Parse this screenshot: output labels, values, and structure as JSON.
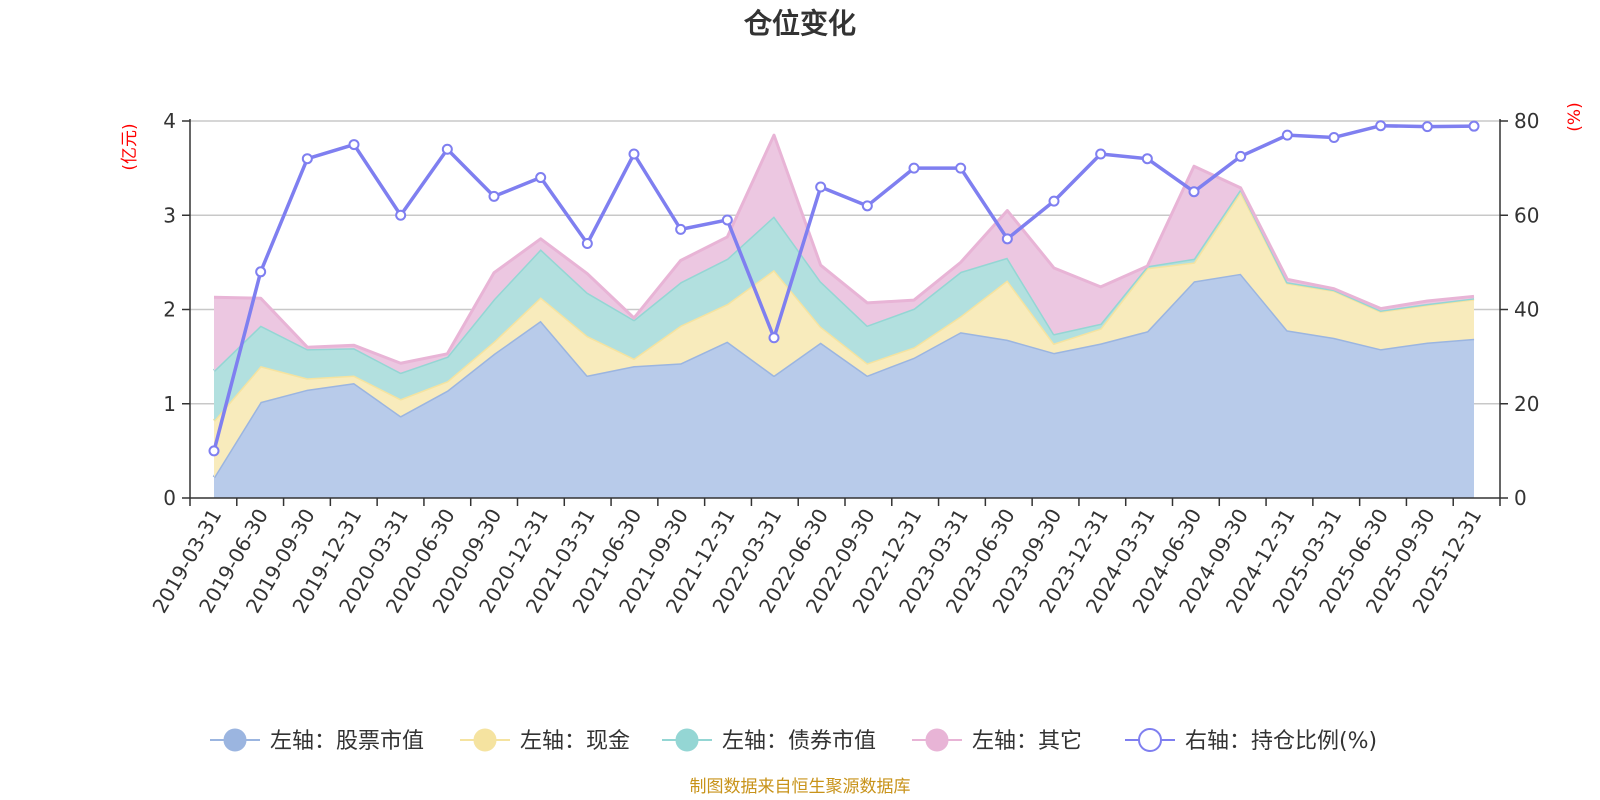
{
  "chart_data": {
    "type": "area",
    "title": "仓位变化",
    "source": "制图数据来自恒生聚源数据库",
    "y_left": {
      "label": "(亿元)",
      "min": 0,
      "max": 4,
      "ticks": [
        0,
        1,
        2,
        3,
        4
      ]
    },
    "y_right": {
      "label": "(%)",
      "min": 0,
      "max": 80,
      "ticks": [
        0,
        20,
        40,
        60,
        80
      ]
    },
    "categories": [
      "2019-03-31",
      "2019-06-30",
      "2019-09-30",
      "2019-12-31",
      "2020-03-31",
      "2020-06-30",
      "2020-09-30",
      "2020-12-31",
      "2021-03-31",
      "2021-06-30",
      "2021-09-30",
      "2021-12-31",
      "2022-03-31",
      "2022-06-30",
      "2022-09-30",
      "2022-12-31",
      "2023-03-31",
      "2023-06-30",
      "2023-09-30",
      "2023-12-31",
      "2024-03-31",
      "2024-06-30",
      "2024-09-30",
      "2024-12-31",
      "2025-03-31",
      "2025-06-30",
      "2025-09-30",
      "2025-12-31"
    ],
    "stacked_series": [
      {
        "name": "左轴：股票市值",
        "color": "#9bb5e0",
        "fill": "#b8cbea",
        "values": [
          0.22,
          1.02,
          1.15,
          1.22,
          0.87,
          1.14,
          1.53,
          1.88,
          1.3,
          1.4,
          1.43,
          1.66,
          1.3,
          1.65,
          1.3,
          1.49,
          1.76,
          1.68,
          1.54,
          1.64,
          1.77,
          2.3,
          2.38,
          1.78,
          1.7,
          1.58,
          1.65,
          1.69
        ]
      },
      {
        "name": "左轴：现金",
        "color": "#f5e3a0",
        "fill": "#f8ebbc",
        "values": [
          0.6,
          0.38,
          0.12,
          0.08,
          0.18,
          0.1,
          0.13,
          0.25,
          0.42,
          0.08,
          0.4,
          0.4,
          1.12,
          0.17,
          0.13,
          0.11,
          0.17,
          0.63,
          0.1,
          0.16,
          0.67,
          0.2,
          0.87,
          0.5,
          0.5,
          0.4,
          0.4,
          0.42
        ]
      },
      {
        "name": "左轴：债券市值",
        "color": "#94d6d4",
        "fill": "#b2e0df",
        "values": [
          0.53,
          0.43,
          0.31,
          0.29,
          0.28,
          0.26,
          0.45,
          0.51,
          0.46,
          0.41,
          0.46,
          0.48,
          0.57,
          0.48,
          0.4,
          0.41,
          0.47,
          0.24,
          0.1,
          0.05,
          0.02,
          0.04,
          0.03,
          0.01,
          0.01,
          0.01,
          0.01,
          0.01
        ]
      },
      {
        "name": "左轴：其它",
        "color": "#e8b4d6",
        "fill": "#ecc7e1",
        "values": [
          0.78,
          0.29,
          0.02,
          0.03,
          0.1,
          0.03,
          0.28,
          0.11,
          0.2,
          0.02,
          0.23,
          0.23,
          0.86,
          0.17,
          0.24,
          0.09,
          0.1,
          0.5,
          0.7,
          0.39,
          0.0,
          0.98,
          0.01,
          0.03,
          0.01,
          0.02,
          0.03,
          0.02
        ]
      }
    ],
    "line_series": {
      "name": "右轴：持仓比例(%)",
      "color": "#7f7ff0",
      "values": [
        10,
        48,
        72,
        75,
        60,
        74,
        64,
        68,
        54,
        73,
        57,
        59,
        34,
        66,
        62,
        70,
        70,
        55,
        63,
        73,
        72,
        65,
        72.5,
        77,
        76.5,
        79,
        78.8,
        78.9
      ]
    }
  }
}
